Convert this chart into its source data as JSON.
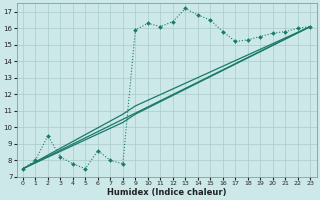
{
  "bg_color": "#cce8e8",
  "grid_color": "#aacccc",
  "line_color": "#1a7a6a",
  "xlabel": "Humidex (Indice chaleur)",
  "xlim": [
    -0.5,
    23.5
  ],
  "ylim": [
    7,
    17.5
  ],
  "yticks": [
    7,
    8,
    9,
    10,
    11,
    12,
    13,
    14,
    15,
    16,
    17
  ],
  "xticks": [
    0,
    1,
    2,
    3,
    4,
    5,
    6,
    7,
    8,
    9,
    10,
    11,
    12,
    13,
    14,
    15,
    16,
    17,
    18,
    19,
    20,
    21,
    22,
    23
  ],
  "dotted_x": [
    0,
    1,
    2,
    3,
    4,
    5,
    6,
    7,
    8,
    9,
    10,
    11,
    12,
    13,
    14,
    15,
    16,
    17,
    18,
    19,
    20,
    21,
    22,
    23
  ],
  "dotted_y": [
    7.5,
    8.0,
    9.5,
    8.2,
    7.8,
    7.5,
    8.6,
    8.0,
    7.8,
    15.9,
    16.3,
    16.1,
    16.4,
    17.2,
    16.8,
    16.5,
    15.8,
    15.2,
    15.3,
    15.5,
    15.7,
    15.8,
    16.0,
    16.1
  ],
  "dotted_marker_x": [
    0,
    1,
    2,
    3,
    4,
    5,
    6,
    7,
    8,
    9,
    10,
    11,
    12,
    13,
    14,
    15,
    16,
    17,
    18,
    19,
    20,
    21,
    22,
    23
  ],
  "line1_x": [
    0,
    23
  ],
  "line1_y": [
    7.5,
    16.1
  ],
  "line2_x": [
    0,
    8,
    9,
    23
  ],
  "line2_y": [
    7.5,
    10.8,
    11.3,
    16.1
  ],
  "line3_x": [
    0,
    8,
    9,
    23
  ],
  "line3_y": [
    7.5,
    10.3,
    10.8,
    16.1
  ],
  "marker_x_dotted": [
    0,
    1,
    2,
    3,
    4,
    5,
    6,
    7,
    8,
    9,
    10,
    11,
    12,
    13,
    14,
    15,
    16,
    17,
    18,
    19,
    20,
    21,
    22,
    23
  ],
  "marker_y_dotted": [
    7.5,
    8.0,
    9.5,
    8.2,
    7.8,
    7.5,
    8.6,
    8.0,
    7.8,
    15.9,
    16.3,
    16.1,
    16.4,
    17.2,
    16.8,
    16.5,
    15.8,
    15.2,
    15.3,
    15.5,
    15.7,
    15.8,
    16.0,
    16.1
  ]
}
